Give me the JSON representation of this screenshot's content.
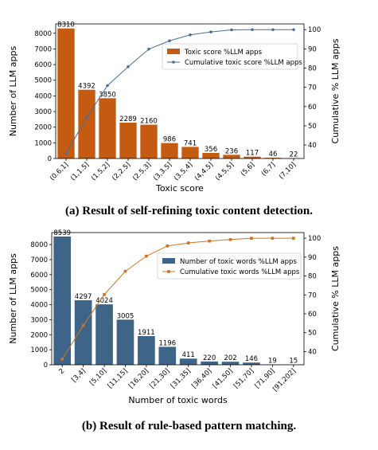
{
  "chart_data": [
    {
      "type": "bar",
      "id": "a",
      "caption": "(a) Result of self-refining toxic content detection.",
      "xlabel": "Toxic score",
      "ylabel": "Number of LLM apps",
      "y2label": "Cumulative % LLM apps",
      "categories": [
        "(0.6,1]",
        "(1,1.5]",
        "(1.5,2]",
        "(2,2.5]",
        "(2.5,3]",
        "(3,3.5]",
        "(3.5,4]",
        "(4,4.5]",
        "(4.5,5]",
        "(5,6]",
        "(6,7]",
        "(7,10]"
      ],
      "series": [
        {
          "name": "Toxic score %LLM apps",
          "kind": "bar",
          "color": "#c55a11",
          "values": [
            8310,
            4392,
            3850,
            2289,
            2160,
            986,
            741,
            356,
            236,
            117,
            46,
            22
          ]
        },
        {
          "name": "Cumulative toxic score %LLM apps",
          "kind": "line",
          "axis": "right",
          "color": "#4a6d96",
          "values": [
            35.6,
            54.4,
            70.9,
            80.7,
            89.9,
            94.2,
            97.3,
            98.8,
            99.9,
            100,
            100,
            100
          ]
        }
      ],
      "ylim": [
        0,
        8600
      ],
      "yticks": [
        0,
        1000,
        2000,
        3000,
        4000,
        5000,
        6000,
        7000,
        8000
      ],
      "y2lim": [
        33,
        103
      ],
      "y2ticks": [
        40,
        50,
        60,
        70,
        80,
        90,
        100
      ],
      "legend": "center-right"
    },
    {
      "type": "bar",
      "id": "b",
      "caption": "(b) Result of rule-based pattern matching.",
      "xlabel": "Number of toxic words",
      "ylabel": "Number of LLM apps",
      "y2label": "Cumulative % LLM apps",
      "categories": [
        "2",
        "[3,4]",
        "[5,10]",
        "[11,15]",
        "[16,20]",
        "[21,30]",
        "[31,35]",
        "[36,40]",
        "[41,50]",
        "[51,70]",
        "[71,90]",
        "[91,202]"
      ],
      "series": [
        {
          "name": "Number of toxic words %LLM apps",
          "kind": "bar",
          "color": "#3e6487",
          "values": [
            8539,
            4297,
            4024,
            3005,
            1911,
            1196,
            411,
            220,
            202,
            146,
            19,
            15
          ]
        },
        {
          "name": "Cumulative toxic words %LLM apps",
          "kind": "line",
          "axis": "right",
          "color": "#d0731f",
          "values": [
            36,
            53.8,
            70.2,
            82.5,
            90.5,
            95.9,
            97.5,
            98.5,
            99.3,
            100,
            100,
            100
          ]
        }
      ],
      "ylim": [
        0,
        8800
      ],
      "yticks": [
        0,
        1000,
        2000,
        3000,
        4000,
        5000,
        6000,
        7000,
        8000
      ],
      "y2lim": [
        33,
        103
      ],
      "y2ticks": [
        40,
        50,
        60,
        70,
        80,
        90,
        100
      ],
      "legend": "center-right"
    }
  ]
}
